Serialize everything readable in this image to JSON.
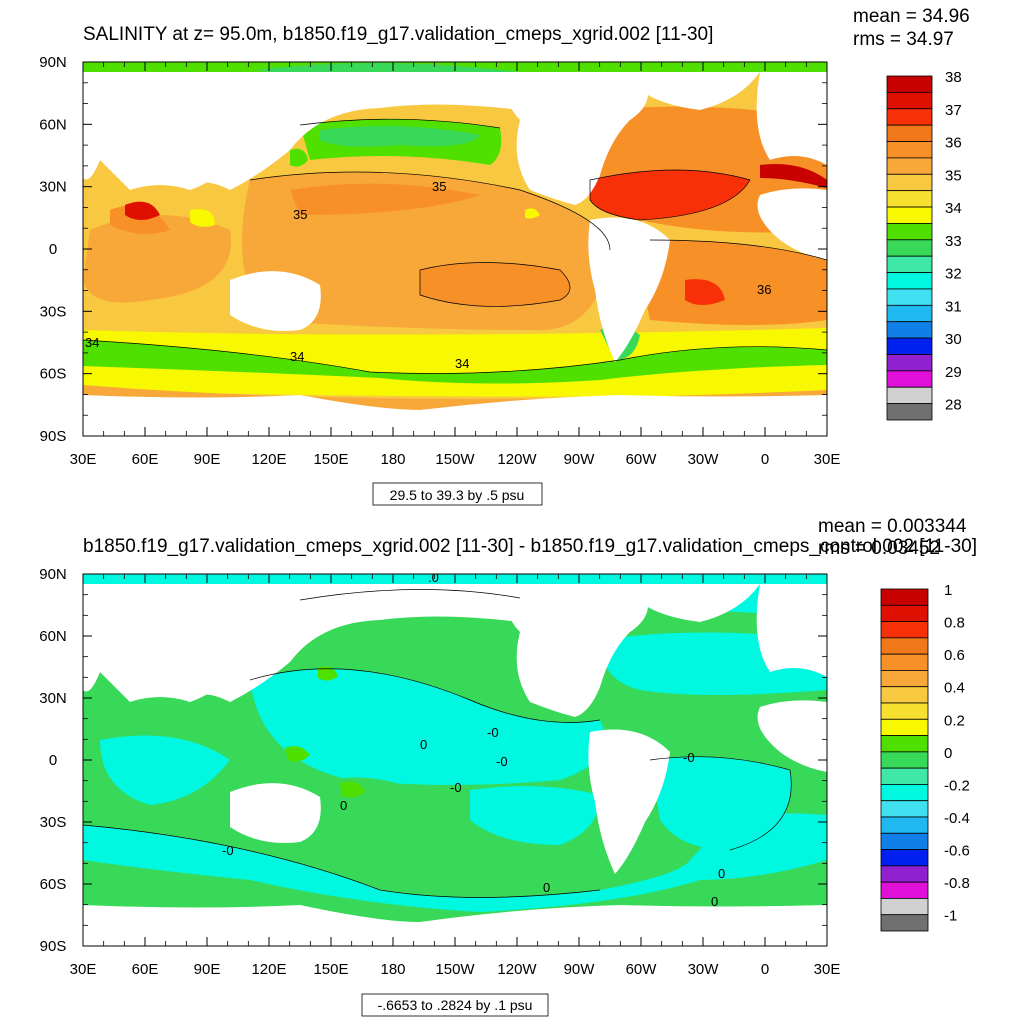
{
  "chart_data": [
    {
      "type": "heatmap",
      "title": "SALINITY at z=  95.0m, b1850.f19_g17.validation_cmeps_xgrid.002 [11-30]",
      "stats": [
        "mean = 34.96",
        "rms = 34.97"
      ],
      "x_ticks": [
        "30E",
        "60E",
        "90E",
        "120E",
        "150E",
        "180",
        "150W",
        "120W",
        "90W",
        "60W",
        "30W",
        "0",
        "30E"
      ],
      "y_ticks": [
        "90N",
        "60N",
        "30N",
        "0",
        "30S",
        "60S",
        "90S"
      ],
      "xlim": [
        30,
        390
      ],
      "ylim": [
        -90,
        90
      ],
      "info_label": "29.5 to 39.3 by .5 psu",
      "colorbar_labels": [
        "38",
        "37",
        "36",
        "35",
        "34",
        "33",
        "32",
        "31",
        "30",
        "29",
        "28"
      ],
      "colorbar_colors": [
        "#c80000",
        "#e01000",
        "#f83008",
        "#f07818",
        "#f89028",
        "#f8a838",
        "#f8c840",
        "#f8e030",
        "#f8f800",
        "#50e000",
        "#38d858",
        "#40e8a8",
        "#00f8e0",
        "#40e0f0",
        "#20b8f0",
        "#1080e8",
        "#0020f0",
        "#9020d0",
        "#e010d8",
        "#d0d0d0",
        "#707070"
      ],
      "contour_labels": [
        "35",
        "35",
        "34",
        "34",
        "36",
        "34"
      ],
      "unit": "psu"
    },
    {
      "type": "heatmap",
      "title": "b1850.f19_g17.validation_cmeps_xgrid.002 [11-30] - b1850.f19_g17.validation_cmeps_control.002 [11-30]",
      "stats": [
        "mean = 0.003344",
        "rms = 0.03452"
      ],
      "x_ticks": [
        "30E",
        "60E",
        "90E",
        "120E",
        "150E",
        "180",
        "150W",
        "120W",
        "90W",
        "60W",
        "30W",
        "0",
        "30E"
      ],
      "y_ticks": [
        "90N",
        "60N",
        "30N",
        "0",
        "30S",
        "60S",
        "90S"
      ],
      "xlim": [
        30,
        390
      ],
      "ylim": [
        -90,
        90
      ],
      "info_label": "-.6653 to .2824 by .1 psu",
      "colorbar_labels": [
        "1",
        "0.8",
        "0.6",
        "0.4",
        "0.2",
        "0",
        "-0.2",
        "-0.4",
        "-0.6",
        "-0.8",
        "-1"
      ],
      "colorbar_colors": [
        "#c80000",
        "#e01000",
        "#f83008",
        "#f07818",
        "#f89028",
        "#f8a838",
        "#f8c840",
        "#f8e030",
        "#f8f800",
        "#50e000",
        "#38d858",
        "#40e8a8",
        "#00f8e0",
        "#40e0f0",
        "#20b8f0",
        "#1080e8",
        "#0020f0",
        "#9020d0",
        "#e010d8",
        "#d0d0d0",
        "#707070"
      ],
      "contour_labels": [
        ".0",
        "0",
        "-0",
        "-0",
        "0",
        "-0",
        "-0",
        "0",
        "-0",
        "0",
        "0"
      ],
      "unit": "psu"
    }
  ]
}
